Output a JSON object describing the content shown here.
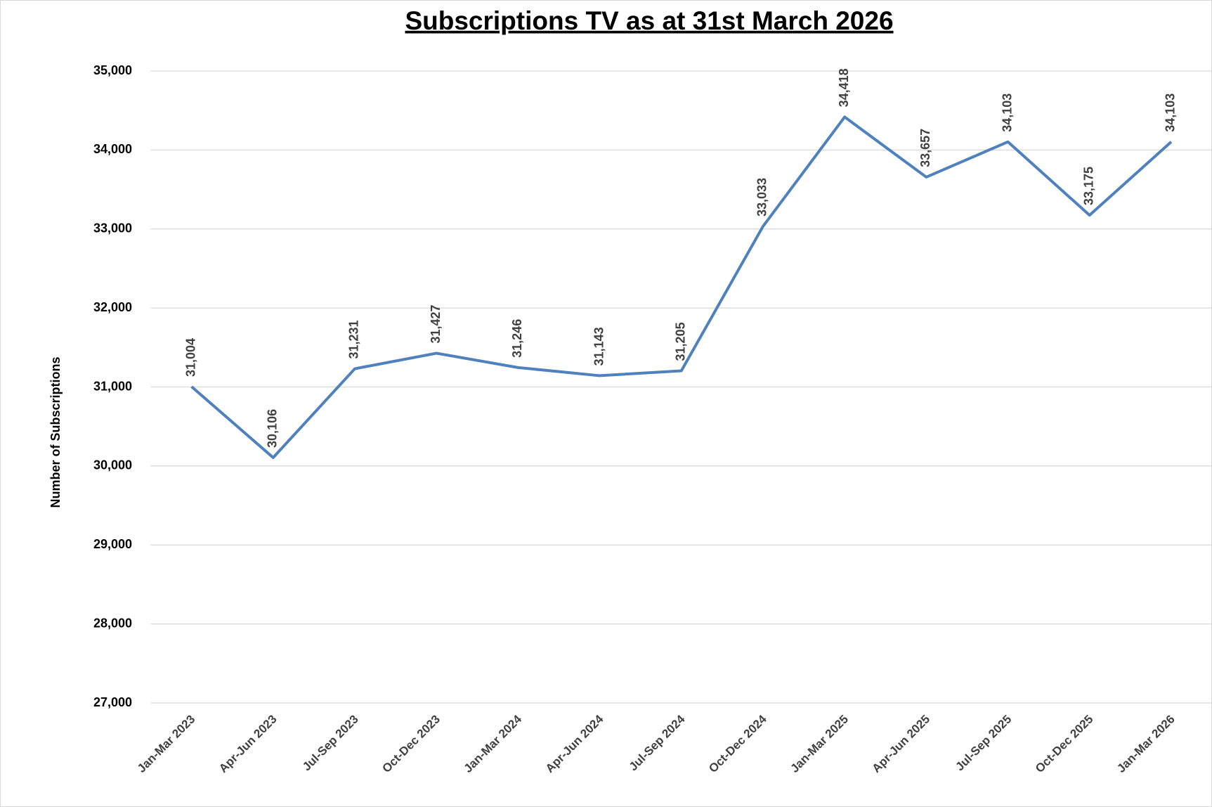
{
  "chart_data": {
    "type": "line",
    "title": "Subscriptions TV as at 31st March 2026",
    "y_label": "Number of Subscriptions",
    "categories": [
      "Jan-Mar 2023",
      "Apr-Jun 2023",
      "Jul-Sep 2023",
      "Oct-Dec 2023",
      "Jan-Mar 2024",
      "Apr-Jun 2024",
      "Jul-Sep 2024",
      "Oct-Dec 2024",
      "Jan-Mar 2025",
      "Apr-Jun 2025",
      "Jul-Sep 2025",
      "Oct-Dec 2025",
      "Jan-Mar 2026"
    ],
    "series": [
      {
        "color": "#4f81bd",
        "values": [
          31004,
          30106,
          31231,
          31427,
          31246,
          31143,
          31205,
          33033,
          34418,
          33657,
          34103,
          33175,
          34103
        ],
        "value_labels": [
          "31,004",
          "30,106",
          "31,231",
          "31,427",
          "31,246",
          "31,143",
          "31,205",
          "33,033",
          "34,418",
          "33,657",
          "34,103",
          "33,175",
          "34,103"
        ]
      }
    ],
    "ylim": [
      27000,
      35000
    ],
    "yticks": [
      {
        "value": 27000,
        "label": "27,000"
      },
      {
        "value": 28000,
        "label": "28,000"
      },
      {
        "value": 29000,
        "label": "29,000"
      },
      {
        "value": 30000,
        "label": "30,000"
      },
      {
        "value": 31000,
        "label": "31,000"
      },
      {
        "value": 32000,
        "label": "32,000"
      },
      {
        "value": 33000,
        "label": "33,000"
      },
      {
        "value": 34000,
        "label": "34,000"
      },
      {
        "value": 35000,
        "label": "35,000"
      }
    ],
    "grid": true
  }
}
